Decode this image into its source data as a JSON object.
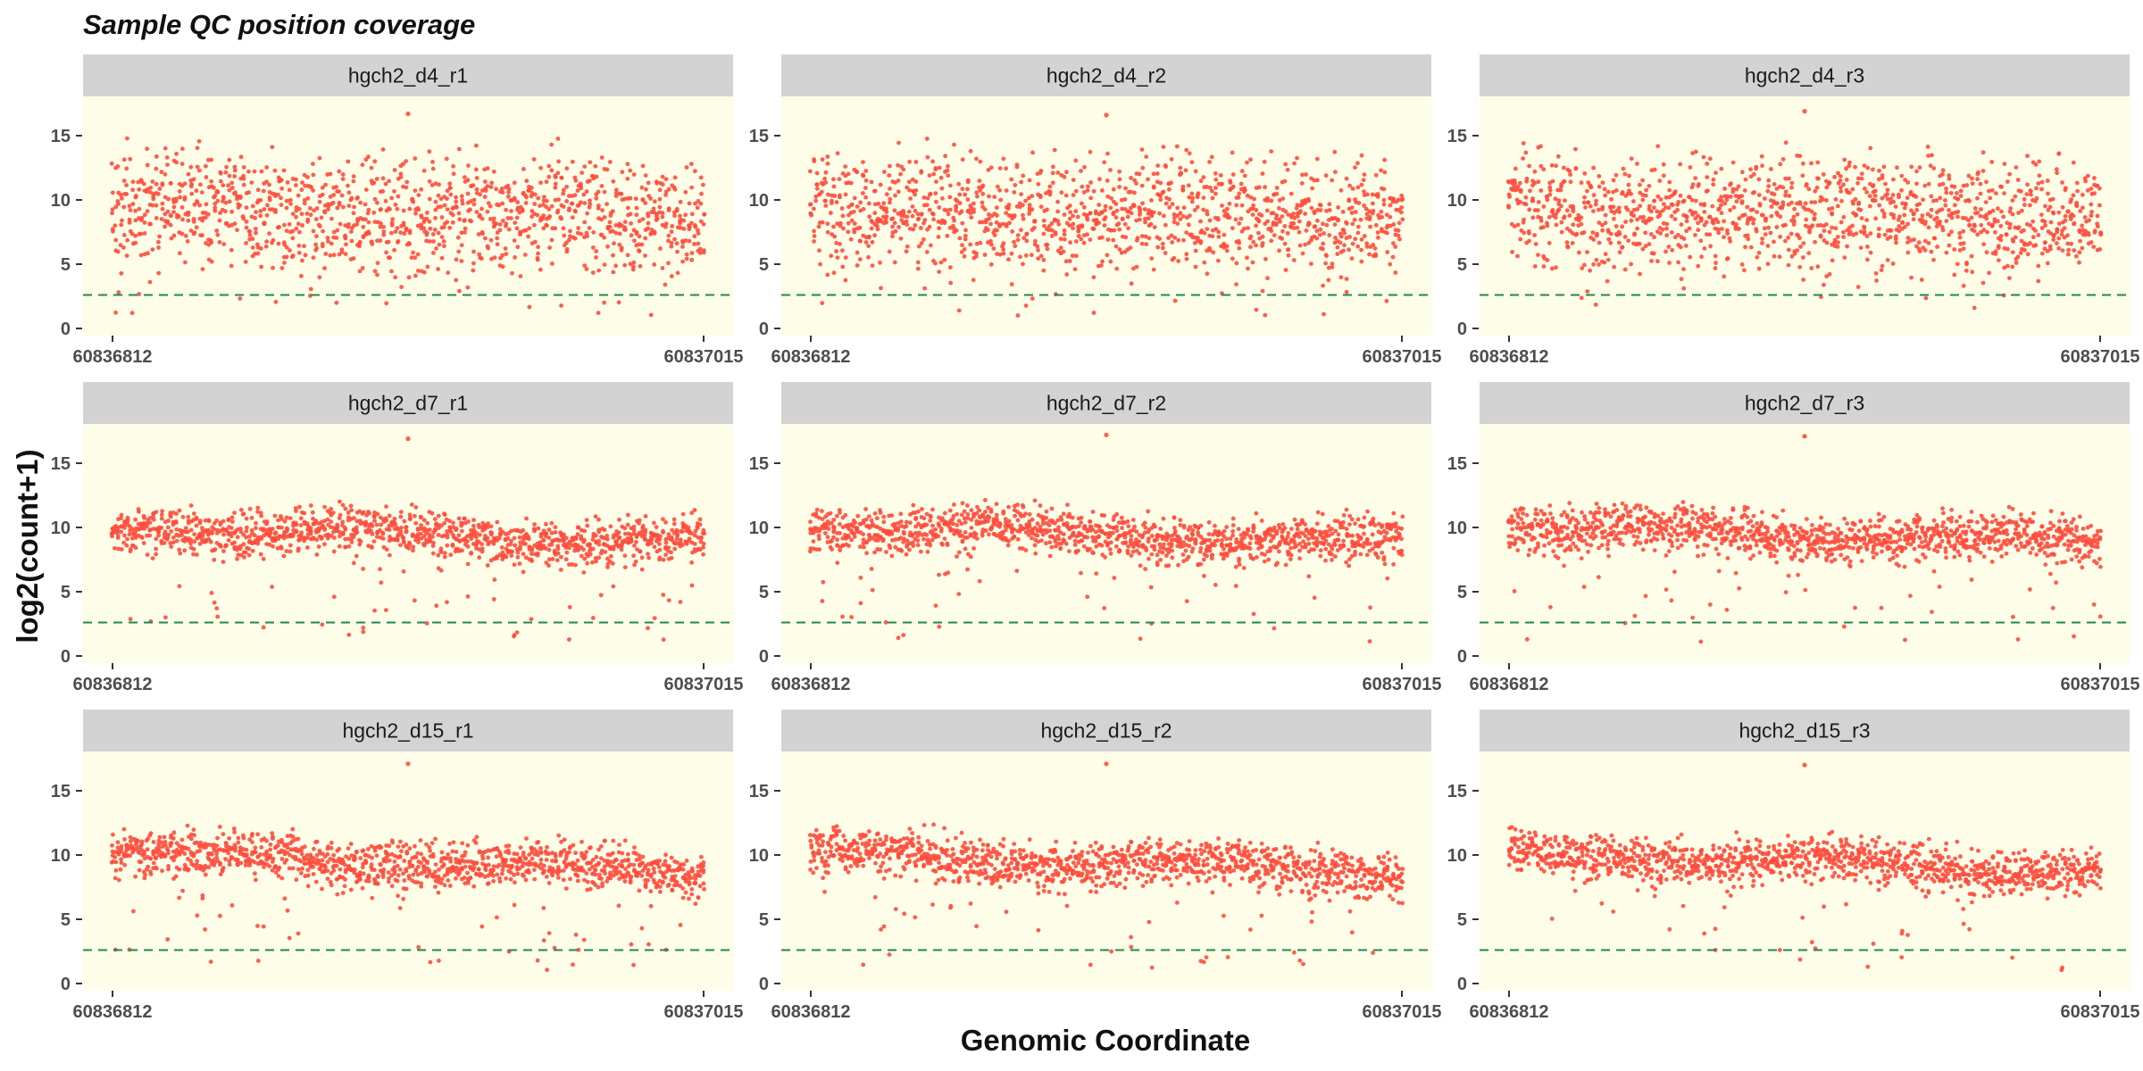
{
  "chart_data": {
    "type": "scatter",
    "title": "Sample QC position coverage",
    "xlabel": "Genomic Coordinate",
    "ylabel": "log2(count+1)",
    "xlim": [
      60836812,
      60837015
    ],
    "ylim": [
      0,
      17.5
    ],
    "x_ticks": [
      "60836812",
      "60837015"
    ],
    "y_ticks": [
      0,
      5,
      10,
      15
    ],
    "facet_layout": {
      "rows": 3,
      "cols": 3
    },
    "threshold_line": {
      "y": 2.6,
      "style": "dashed"
    },
    "point_count_per_position": 6,
    "colors": {
      "points": "#ff4d3d",
      "panel_background": "#fdfde8",
      "strip_background": "#d3d3d3",
      "threshold": "#1f8a4c"
    },
    "facets": [
      {
        "name": "hgch2_d4_r1",
        "center": 9.0,
        "spread": 4.6,
        "slope": -0.2,
        "max": {
          "x_frac": 0.5,
          "y": 16.7
        }
      },
      {
        "name": "hgch2_d4_r2",
        "center": 9.0,
        "spread": 4.6,
        "slope": -0.3,
        "max": {
          "x_frac": 0.5,
          "y": 16.6
        }
      },
      {
        "name": "hgch2_d4_r3",
        "center": 9.0,
        "spread": 4.6,
        "slope": -0.4,
        "max": {
          "x_frac": 0.5,
          "y": 16.9
        }
      },
      {
        "name": "hgch2_d7_r1",
        "center": 9.4,
        "spread": 1.9,
        "slope": -1.2,
        "max": {
          "x_frac": 0.5,
          "y": 16.9
        }
      },
      {
        "name": "hgch2_d7_r2",
        "center": 9.4,
        "spread": 1.9,
        "slope": -1.2,
        "max": {
          "x_frac": 0.5,
          "y": 17.2
        }
      },
      {
        "name": "hgch2_d7_r3",
        "center": 9.4,
        "spread": 1.9,
        "slope": -1.2,
        "max": {
          "x_frac": 0.5,
          "y": 17.1
        }
      },
      {
        "name": "hgch2_d15_r1",
        "center": 9.4,
        "spread": 1.9,
        "slope": -1.3,
        "max": {
          "x_frac": 0.5,
          "y": 17.1
        }
      },
      {
        "name": "hgch2_d15_r2",
        "center": 9.4,
        "spread": 1.9,
        "slope": -1.3,
        "max": {
          "x_frac": 0.5,
          "y": 17.1
        }
      },
      {
        "name": "hgch2_d15_r3",
        "center": 9.4,
        "spread": 1.9,
        "slope": -1.3,
        "max": {
          "x_frac": 0.5,
          "y": 17.0
        }
      }
    ]
  }
}
